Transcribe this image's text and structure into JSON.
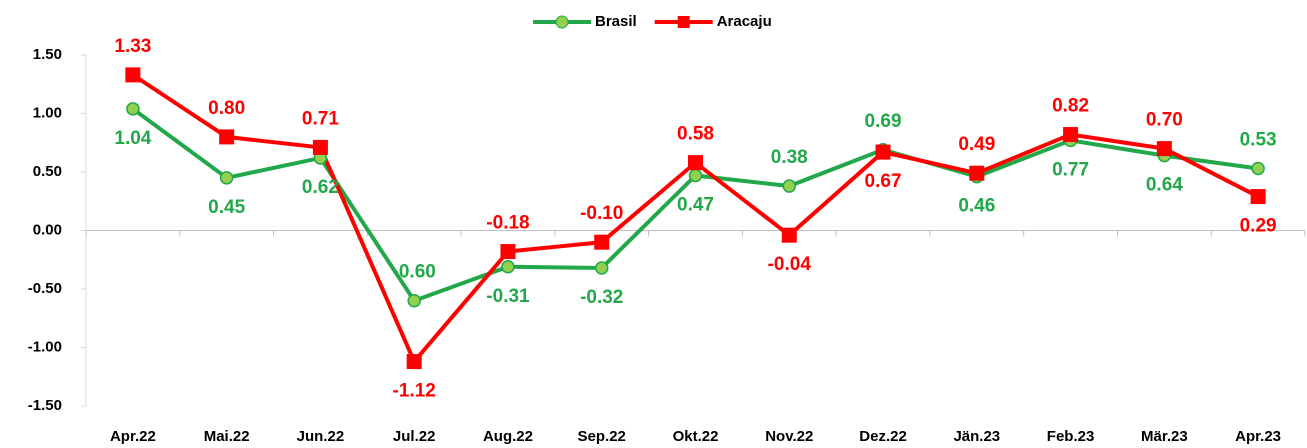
{
  "chart_data": {
    "type": "line",
    "categories": [
      "Apr.22",
      "Mai.22",
      "Jun.22",
      "Jul.22",
      "Aug.22",
      "Sep.22",
      "Okt.22",
      "Nov.22",
      "Dez.22",
      "Jän.23",
      "Feb.23",
      "Mär.23",
      "Apr.23"
    ],
    "series": [
      {
        "name": "Brasil",
        "color": "#22a84a",
        "marker_fill": "#92d050",
        "marker": "circle",
        "values": [
          1.04,
          0.45,
          0.62,
          -0.6,
          -0.31,
          -0.32,
          0.47,
          0.38,
          0.69,
          0.46,
          0.77,
          0.64,
          0.53
        ],
        "value_labels": [
          "1.04",
          "0.45",
          "0.62",
          "-0.60",
          "-0.31",
          "-0.32",
          "0.47",
          "0.38",
          "0.69",
          "0.46",
          "0.77",
          "0.64",
          "0.53"
        ]
      },
      {
        "name": "Aracaju",
        "color": "#ff0000",
        "marker_fill": "#ff0000",
        "marker": "square",
        "values": [
          1.33,
          0.8,
          0.71,
          -1.12,
          -0.18,
          -0.1,
          0.58,
          -0.04,
          0.67,
          0.49,
          0.82,
          0.7,
          0.29
        ],
        "value_labels": [
          "1.33",
          "0.80",
          "0.71",
          "-1.12",
          "-0.18",
          "-0.10",
          "0.58",
          "-0.04",
          "0.67",
          "0.49",
          "0.82",
          "0.70",
          "0.29"
        ]
      }
    ],
    "ylim": [
      -1.5,
      1.5
    ],
    "yticks": [
      {
        "value": -1.5,
        "label": "-1.50"
      },
      {
        "value": -1,
        "label": "-1.00"
      },
      {
        "value": -0.5,
        "label": "-0.50"
      },
      {
        "value": 0,
        "label": "0.00"
      },
      {
        "value": 0.5,
        "label": "0.50"
      },
      {
        "value": 1,
        "label": "1.00"
      },
      {
        "value": 1.5,
        "label": "1.50"
      }
    ],
    "legend": "top"
  }
}
